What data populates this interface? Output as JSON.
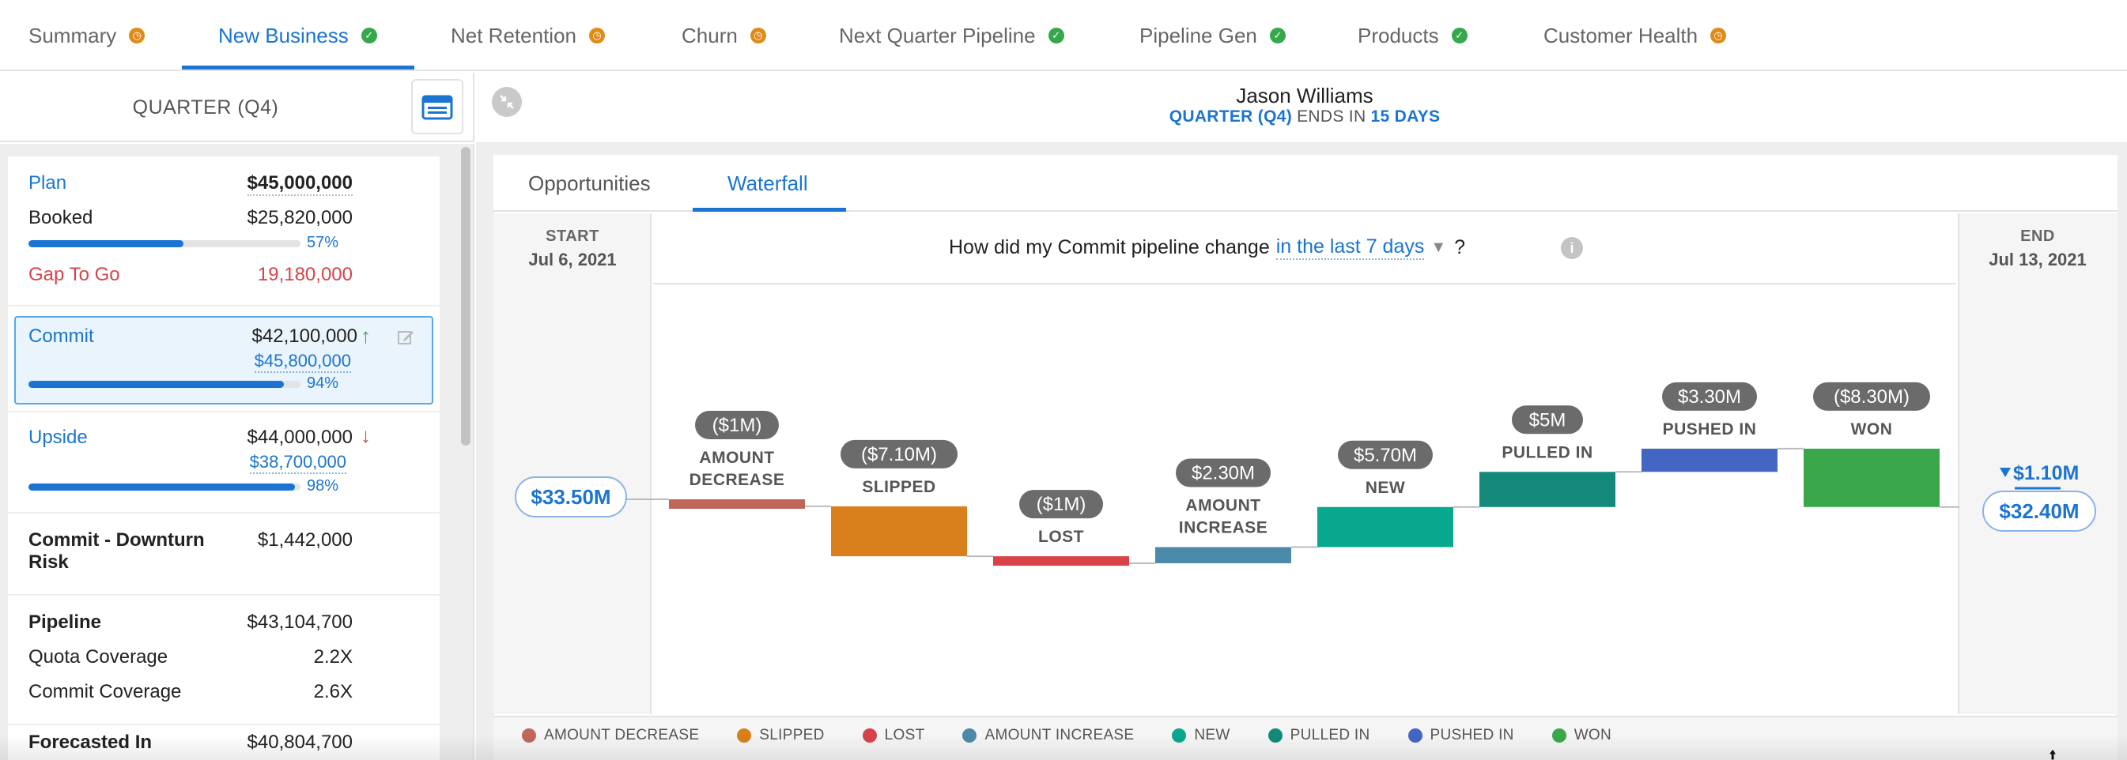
{
  "tabs": [
    {
      "label": "Summary",
      "status": "pending"
    },
    {
      "label": "New Business",
      "status": "done",
      "active": true
    },
    {
      "label": "Net Retention",
      "status": "pending"
    },
    {
      "label": "Churn",
      "status": "pending"
    },
    {
      "label": "Next Quarter Pipeline",
      "status": "done"
    },
    {
      "label": "Pipeline Gen",
      "status": "done"
    },
    {
      "label": "Products",
      "status": "done"
    },
    {
      "label": "Customer Health",
      "status": "pending"
    }
  ],
  "left": {
    "quarter_label": "QUARTER (Q4)",
    "plan": {
      "label": "Plan",
      "value": "$45,000,000"
    },
    "booked": {
      "label": "Booked",
      "value": "$25,820,000",
      "pct": "57%",
      "progress": 0.57
    },
    "gap": {
      "label": "Gap To Go",
      "value": "19,180,000"
    },
    "commit": {
      "label": "Commit",
      "value": "$42,100,000",
      "sub_value": "$45,800,000",
      "pct": "94%",
      "progress": 0.94
    },
    "upside": {
      "label": "Upside",
      "value": "$44,000,000",
      "sub_value": "$38,700,000",
      "pct": "98%",
      "progress": 0.98
    },
    "downturn": {
      "label_line1": "Commit - Downturn",
      "label_line2": "Risk",
      "value": "$1,442,000"
    },
    "pipeline": {
      "label": "Pipeline",
      "value": "$43,104,700"
    },
    "quota_coverage": {
      "label": "Quota Coverage",
      "value": "2.2X"
    },
    "commit_coverage": {
      "label": "Commit Coverage",
      "value": "2.6X"
    },
    "forecasted": {
      "label": "Forecasted In",
      "value": "$40,804,700"
    }
  },
  "header": {
    "user_name": "Jason Williams",
    "quarter": "QUARTER (Q4)",
    "ends_in": "ENDS IN",
    "days": "15 DAYS"
  },
  "subtabs": [
    {
      "label": "Opportunities"
    },
    {
      "label": "Waterfall",
      "active": true
    }
  ],
  "waterfall": {
    "start_title": "START",
    "start_date": "Jul 6, 2021",
    "end_title": "END",
    "end_date": "Jul 13, 2021",
    "question_prefix": "How did my Commit pipeline change",
    "question_period": "in the last 7 days",
    "question_suffix": "?",
    "info_icon": "i",
    "start_value": "$33.50M",
    "end_value": "$32.40M",
    "net_change": "$1.10M"
  },
  "chart_data": {
    "type": "waterfall",
    "start": 33.5,
    "end": 32.4,
    "unit": "$M",
    "steps": [
      {
        "name": "AMOUNT DECREASE",
        "label_lines": [
          "AMOUNT",
          "DECREASE"
        ],
        "badge": "($1M)",
        "delta": -1.0,
        "color": "#c0675a"
      },
      {
        "name": "SLIPPED",
        "label_lines": [
          "SLIPPED"
        ],
        "badge": "($7.10M)",
        "delta": -7.1,
        "color": "#d97f1c"
      },
      {
        "name": "LOST",
        "label_lines": [
          "LOST"
        ],
        "badge": "($1M)",
        "delta": -1.0,
        "color": "#d8434a"
      },
      {
        "name": "AMOUNT INCREASE",
        "label_lines": [
          "AMOUNT",
          "INCREASE"
        ],
        "badge": "$2.30M",
        "delta": 2.3,
        "color": "#4b8aa8"
      },
      {
        "name": "NEW",
        "label_lines": [
          "NEW"
        ],
        "badge": "$5.70M",
        "delta": 5.7,
        "color": "#07a88e"
      },
      {
        "name": "PULLED IN",
        "label_lines": [
          "PULLED IN"
        ],
        "badge": "$5M",
        "delta": 5.0,
        "color": "#13897a"
      },
      {
        "name": "PUSHED IN",
        "label_lines": [
          "PUSHED IN"
        ],
        "badge": "$3.30M",
        "delta": 3.3,
        "color": "#4266c2"
      },
      {
        "name": "WON",
        "label_lines": [
          "WON"
        ],
        "badge": "($8.30M)",
        "delta": -8.3,
        "color": "#3aa84a"
      }
    ]
  },
  "legend": [
    {
      "label": "AMOUNT DECREASE",
      "color": "#c0675a"
    },
    {
      "label": "SLIPPED",
      "color": "#d97f1c"
    },
    {
      "label": "LOST",
      "color": "#d8434a"
    },
    {
      "label": "AMOUNT INCREASE",
      "color": "#4b8aa8"
    },
    {
      "label": "NEW",
      "color": "#07a88e"
    },
    {
      "label": "PULLED IN",
      "color": "#13897a"
    },
    {
      "label": "PUSHED IN",
      "color": "#4266c2"
    },
    {
      "label": "WON",
      "color": "#3aa84a"
    }
  ]
}
